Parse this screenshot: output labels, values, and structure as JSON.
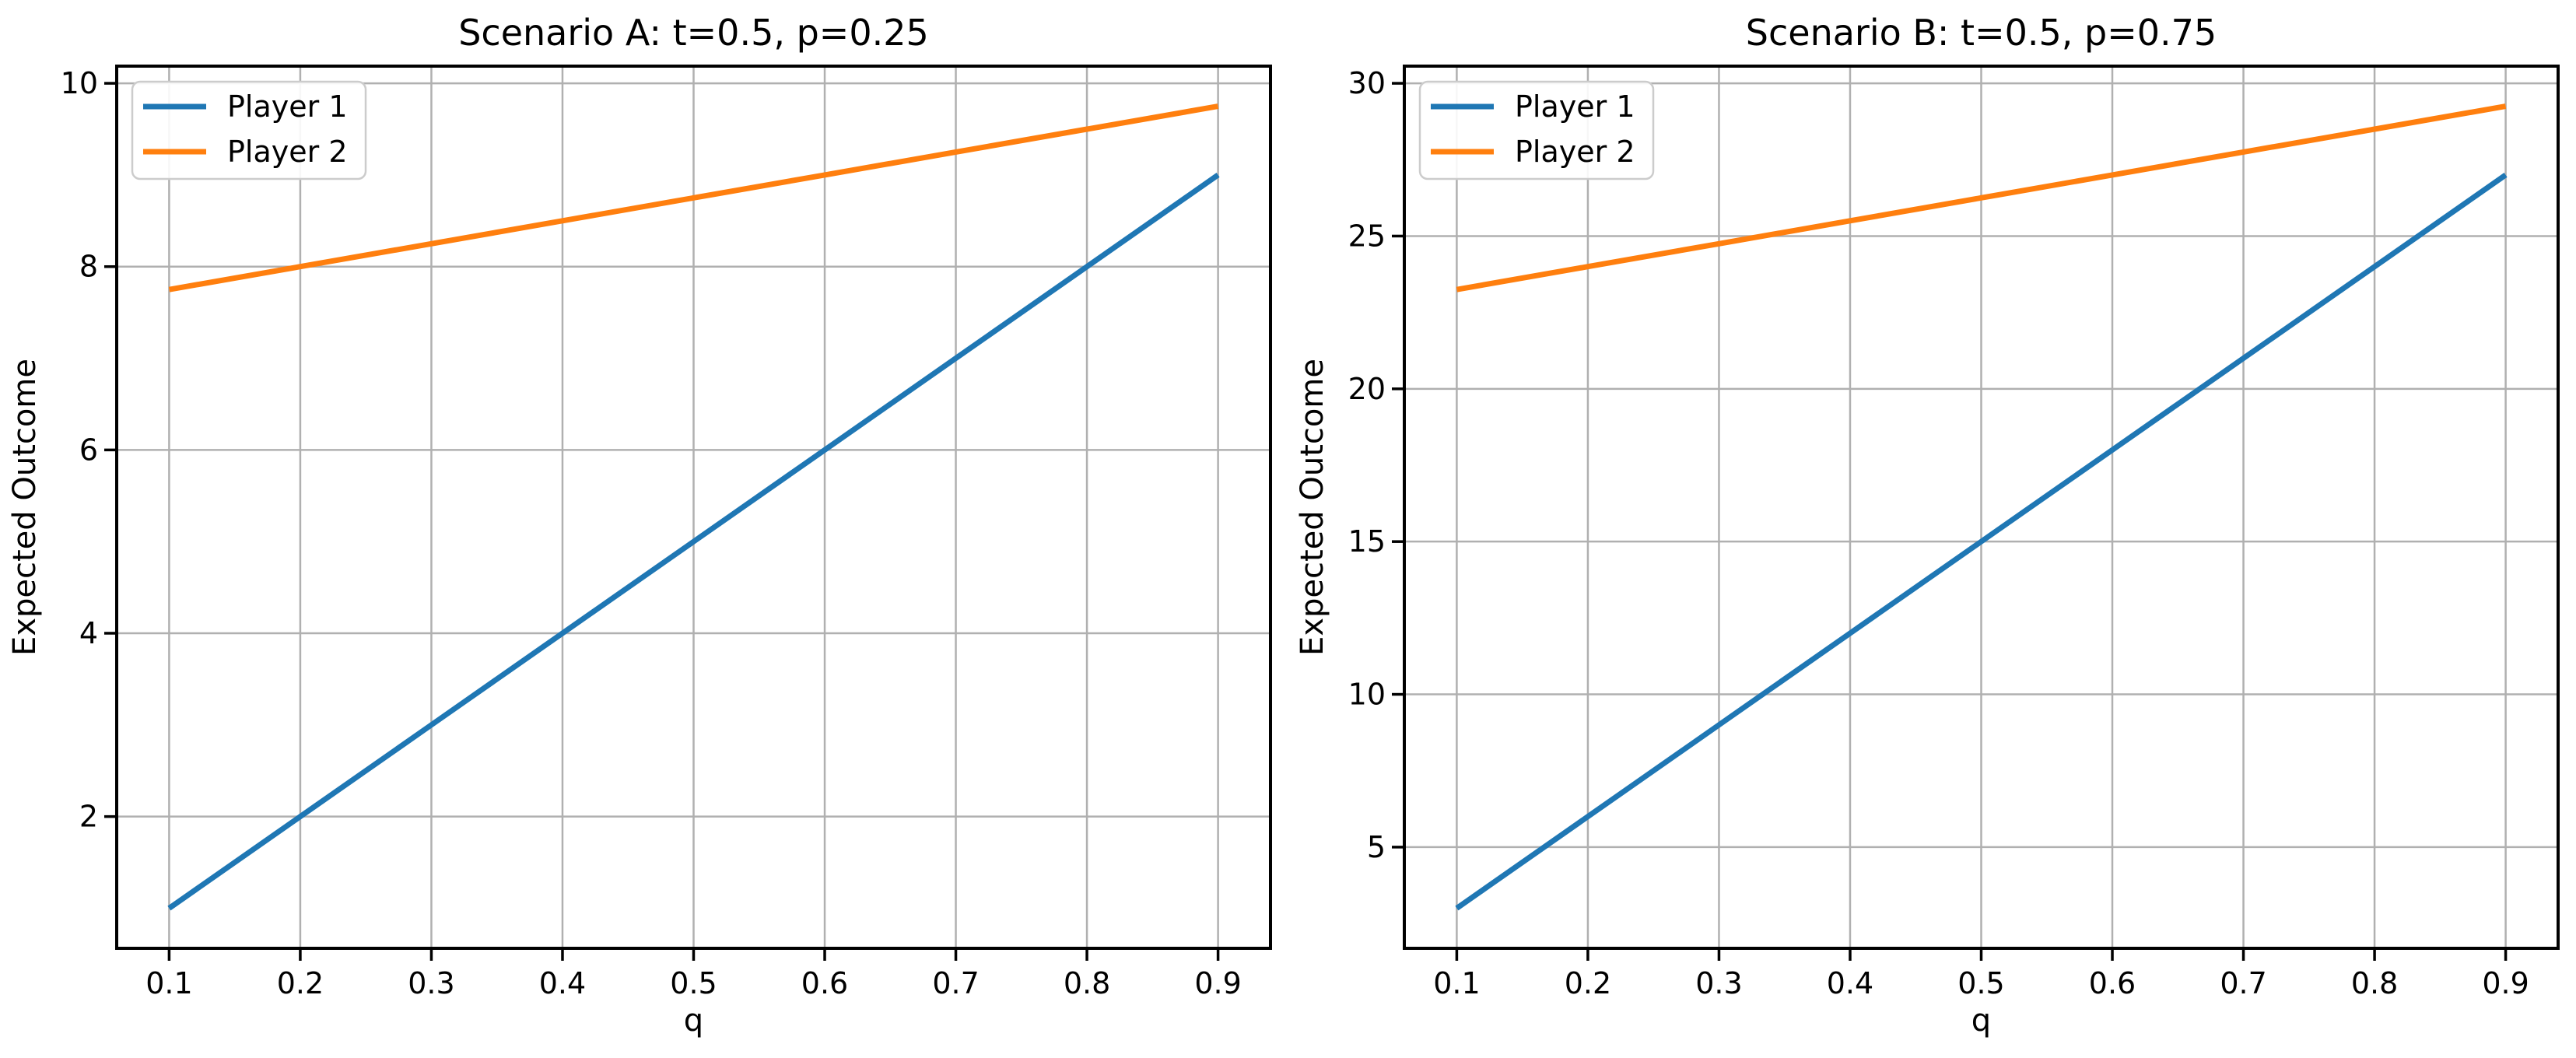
{
  "figure": {
    "background": "#ffffff"
  },
  "colors": {
    "grid": "#b0b0b0",
    "spine": "#000000",
    "text": "#000000",
    "legend_border": "#cccccc",
    "legend_bg": "#ffffff",
    "player1": "#1f77b4",
    "player2": "#ff7f0e"
  },
  "chart_data": [
    {
      "type": "line",
      "title": "Scenario A: t=0.5, p=0.25",
      "xlabel": "q",
      "ylabel": "Expected Outcome",
      "x": [
        0.1,
        0.2,
        0.3,
        0.4,
        0.5,
        0.6,
        0.7,
        0.8,
        0.9
      ],
      "series": [
        {
          "name": "Player 1",
          "color": "#1f77b4",
          "values": [
            1.0,
            2.0,
            3.0,
            4.0,
            5.0,
            6.0,
            7.0,
            8.0,
            9.0
          ]
        },
        {
          "name": "Player 2",
          "color": "#ff7f0e",
          "values": [
            7.75,
            8.0,
            8.25,
            8.5,
            8.75,
            9.0,
            9.25,
            9.5,
            9.75
          ]
        }
      ],
      "xticks": [
        0.1,
        0.2,
        0.3,
        0.4,
        0.5,
        0.6,
        0.7,
        0.8,
        0.9
      ],
      "xtick_labels": [
        "0.1",
        "0.2",
        "0.3",
        "0.4",
        "0.5",
        "0.6",
        "0.7",
        "0.8",
        "0.9"
      ],
      "yticks": [
        2,
        4,
        6,
        8,
        10
      ],
      "ytick_labels": [
        "2",
        "4",
        "6",
        "8",
        "10"
      ],
      "xlim": [
        0.06,
        0.94
      ],
      "ylim": [
        0.5625,
        10.1875
      ],
      "grid": true,
      "legend": {
        "position": "upper left",
        "entries": [
          "Player 1",
          "Player 2"
        ]
      }
    },
    {
      "type": "line",
      "title": "Scenario B: t=0.5, p=0.75",
      "xlabel": "q",
      "ylabel": "Expected Outcome",
      "x": [
        0.1,
        0.2,
        0.3,
        0.4,
        0.5,
        0.6,
        0.7,
        0.8,
        0.9
      ],
      "series": [
        {
          "name": "Player 1",
          "color": "#1f77b4",
          "values": [
            3.0,
            6.0,
            9.0,
            12.0,
            15.0,
            18.0,
            21.0,
            24.0,
            27.0
          ]
        },
        {
          "name": "Player 2",
          "color": "#ff7f0e",
          "values": [
            23.25,
            24.0,
            24.75,
            25.5,
            26.25,
            27.0,
            27.75,
            28.5,
            29.25
          ]
        }
      ],
      "xticks": [
        0.1,
        0.2,
        0.3,
        0.4,
        0.5,
        0.6,
        0.7,
        0.8,
        0.9
      ],
      "xtick_labels": [
        "0.1",
        "0.2",
        "0.3",
        "0.4",
        "0.5",
        "0.6",
        "0.7",
        "0.8",
        "0.9"
      ],
      "yticks": [
        5,
        10,
        15,
        20,
        25,
        30
      ],
      "ytick_labels": [
        "5",
        "10",
        "15",
        "20",
        "25",
        "30"
      ],
      "xlim": [
        0.06,
        0.94
      ],
      "ylim": [
        1.6875,
        30.5625
      ],
      "grid": true,
      "legend": {
        "position": "upper left",
        "entries": [
          "Player 1",
          "Player 2"
        ]
      }
    }
  ]
}
